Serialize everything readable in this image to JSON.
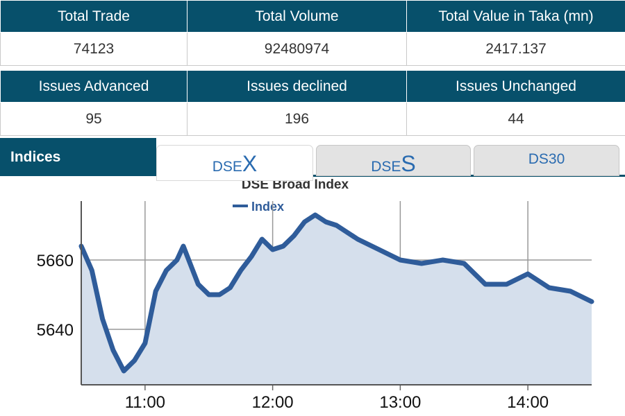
{
  "summary": {
    "headers_row1": [
      "Total Trade",
      "Total Volume",
      "Total Value in Taka (mn)"
    ],
    "values_row1": [
      "74123",
      "92480974",
      "2417.137"
    ],
    "headers_row2": [
      "Issues Advanced",
      "Issues declined",
      "Issues Unchanged"
    ],
    "values_row2": [
      "95",
      "196",
      "44"
    ]
  },
  "indices": {
    "label": "Indices",
    "tabs": [
      {
        "prefix": "DSE",
        "suffix": "X",
        "active": true
      },
      {
        "prefix": "DSE",
        "suffix": "S",
        "active": false
      },
      {
        "prefix": "DS30",
        "suffix": "",
        "active": false
      }
    ]
  },
  "colors": {
    "header_bg": "#07506b",
    "line": "#2f5c9a",
    "fill": "#d5dfec",
    "tab_text": "#2a6bb0"
  },
  "chart_data": {
    "type": "area",
    "title": "DSE Broad Index",
    "series": [
      {
        "name": "Index",
        "x": [
          "10:30",
          "10:35",
          "10:40",
          "10:45",
          "10:50",
          "10:55",
          "11:00",
          "11:05",
          "11:10",
          "11:15",
          "11:18",
          "11:25",
          "11:30",
          "11:35",
          "11:40",
          "11:45",
          "11:50",
          "11:55",
          "12:00",
          "12:05",
          "12:10",
          "12:15",
          "12:20",
          "12:25",
          "12:30",
          "12:40",
          "12:50",
          "13:00",
          "13:10",
          "13:20",
          "13:30",
          "13:40",
          "13:50",
          "14:00",
          "14:10",
          "14:20",
          "14:30"
        ],
        "values": [
          5664,
          5657,
          5643,
          5634,
          5628,
          5631,
          5636,
          5651,
          5657,
          5660,
          5664,
          5653,
          5650,
          5650,
          5652,
          5657,
          5661,
          5666,
          5663,
          5664,
          5667,
          5671,
          5673,
          5671,
          5670,
          5666,
          5663,
          5660,
          5659,
          5660,
          5659,
          5653,
          5653,
          5656,
          5652,
          5651,
          5648
        ]
      }
    ],
    "x_ticks": [
      "11:00",
      "12:00",
      "13:00",
      "14:00"
    ],
    "y_ticks": [
      5640,
      5660
    ],
    "xlim": [
      "10:30",
      "14:30"
    ],
    "ylim": [
      5624,
      5677
    ],
    "grid": true,
    "legend_position": "top"
  }
}
